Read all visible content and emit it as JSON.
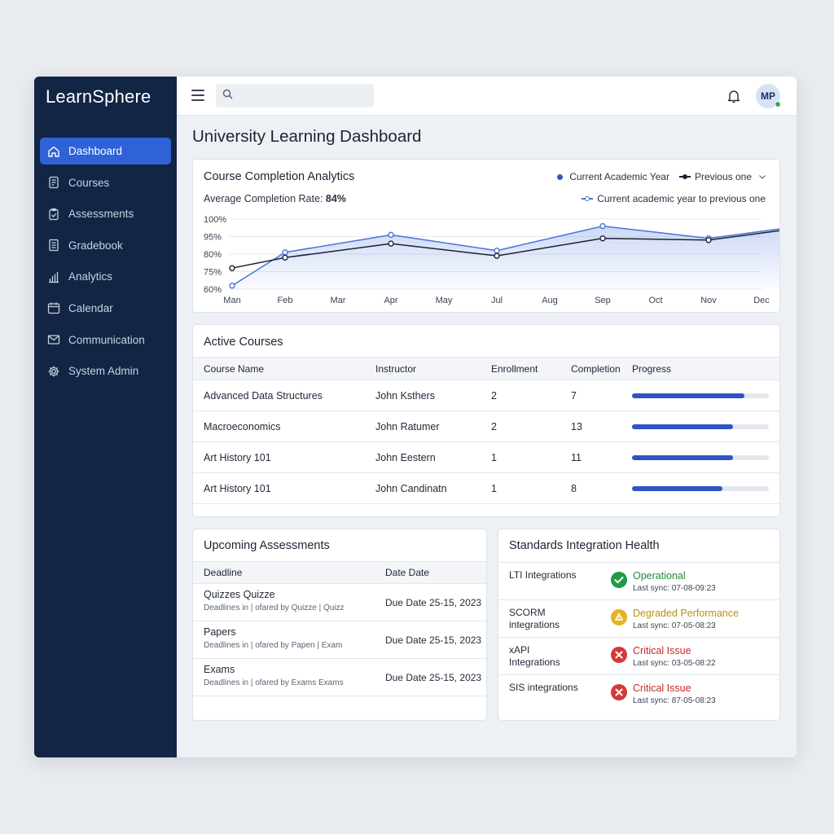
{
  "app": {
    "brand": "LearnSphere"
  },
  "sidebar": {
    "items": [
      {
        "label": "Dashboard",
        "icon": "home-icon",
        "active": true
      },
      {
        "label": "Courses",
        "icon": "document-icon"
      },
      {
        "label": "Assessments",
        "icon": "clipboard-check-icon"
      },
      {
        "label": "Gradebook",
        "icon": "gradebook-icon"
      },
      {
        "label": "Analytics",
        "icon": "bar-chart-icon"
      },
      {
        "label": "Calendar",
        "icon": "calendar-icon"
      },
      {
        "label": "Communication",
        "icon": "mail-icon"
      },
      {
        "label": "System Admin",
        "icon": "gear-icon"
      }
    ]
  },
  "topbar": {
    "search_placeholder": "",
    "avatar_initials": "MP"
  },
  "page": {
    "title": "University Learning Dashboard"
  },
  "analytics": {
    "title": "Course Completion Analytics",
    "avg_label": "Average Completion Rate:",
    "avg_value": "84%",
    "legend_current": "Current Academic Year",
    "legend_previous": "Previous one",
    "compare_label": "Current academic year to previous one"
  },
  "chart_data": {
    "type": "line",
    "categories": [
      "Man",
      "Feb",
      "Mar",
      "Apr",
      "May",
      "Jul",
      "Aug",
      "Sep",
      "Oct",
      "Nov",
      "Dec"
    ],
    "y_tick_labels": [
      "100%",
      "95%",
      "80%",
      "75%",
      "60%"
    ],
    "series": [
      {
        "name": "Current Academic Year",
        "points": [
          [
            0,
            62
          ],
          [
            1,
            81
          ],
          [
            3,
            91
          ],
          [
            5,
            82
          ],
          [
            7,
            96
          ],
          [
            9,
            89
          ],
          [
            11,
            97
          ]
        ],
        "color": "#4a73d6",
        "fill": true
      },
      {
        "name": "Previous one",
        "points": [
          [
            0,
            72
          ],
          [
            1,
            78
          ],
          [
            3,
            86
          ],
          [
            5,
            79
          ],
          [
            7,
            89
          ],
          [
            9,
            88
          ],
          [
            11,
            96
          ]
        ],
        "color": "#1a2235",
        "fill": false
      }
    ],
    "ylim": [
      60,
      100
    ],
    "grid": true,
    "legend_position": "top-right"
  },
  "courses": {
    "title": "Active Courses",
    "headers": [
      "Course Name",
      "Instructor",
      "Enrollment",
      "Completion",
      "Progress"
    ],
    "rows": [
      {
        "name": "Advanced Data Structures",
        "instructor": "John Ksthers",
        "enrollment": "2",
        "completion": "7",
        "progress": 0.82
      },
      {
        "name": "Macroeconomics",
        "instructor": "John Ratumer",
        "enrollment": "2",
        "completion": "13",
        "progress": 0.74
      },
      {
        "name": "Art History 101",
        "instructor": "John Eestern",
        "enrollment": "1",
        "completion": "11",
        "progress": 0.74
      },
      {
        "name": "Art History 101",
        "instructor": "John Candinatn",
        "enrollment": "1",
        "completion": "8",
        "progress": 0.66
      }
    ]
  },
  "assessments": {
    "title": "Upcoming Assessments",
    "headers": [
      "Deadline",
      "Date Date"
    ],
    "rows": [
      {
        "name": "Quizzes Quizze",
        "desc": "Deadlines in | ofared by Quizze | Quizz",
        "date": "Due Date 25-15, 2023"
      },
      {
        "name": "Papers",
        "desc": "Deadlines in | ofared by Papen | Exam",
        "date": "Due Date 25-15, 2023"
      },
      {
        "name": "Exams",
        "desc": "Deadlines in | ofared by Exams Exams",
        "date": "Due Date 25-15, 2023"
      }
    ]
  },
  "health": {
    "title": "Standards Integration Health",
    "rows": [
      {
        "name": "LTI Integrations",
        "status": "Operational",
        "status_color": "#1f8a3c",
        "icon": "check-circle-icon",
        "icon_color": "#1f9a45",
        "sync": "Last sync: 07-08-09:23"
      },
      {
        "name": "SCORM integrations",
        "status": "Degraded Performance",
        "status_color": "#b8920f",
        "icon": "warning-circle-icon",
        "icon_color": "#e2b423",
        "sync": "Last sync: 07-05-08:23"
      },
      {
        "name": "xAPI Integrations",
        "status": "Critical Issue",
        "status_color": "#c62828",
        "icon": "x-circle-icon",
        "icon_color": "#d23a3a",
        "sync": "Last sync: 03-05-08:22"
      },
      {
        "name": "SIS integrations",
        "status": "Critical Issue",
        "status_color": "#c62828",
        "icon": "x-circle-icon",
        "icon_color": "#d23a3a",
        "sync": "Last sync: 87-05-08:23"
      }
    ]
  }
}
